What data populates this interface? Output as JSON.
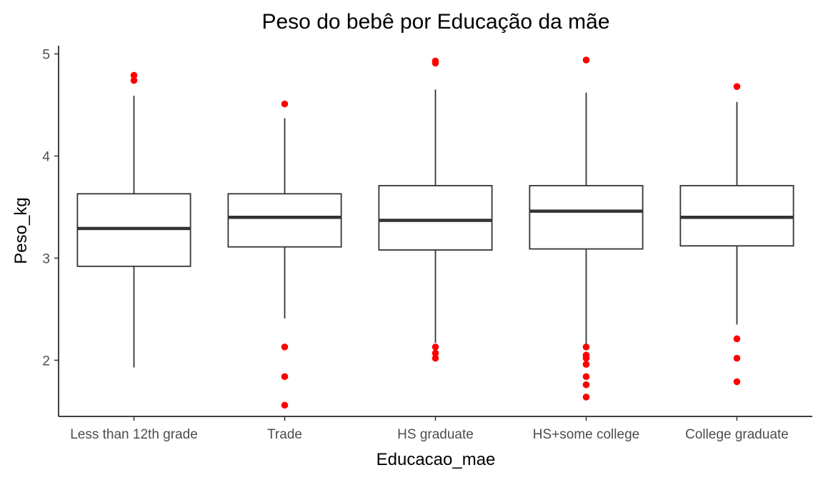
{
  "chart_data": {
    "type": "boxplot",
    "title": "Peso do bebê por Educação da mãe",
    "xlabel": "Educacao_mae",
    "ylabel": "Peso_kg",
    "ylim": [
      1.45,
      5.08
    ],
    "yticks": [
      "2",
      "3",
      "4",
      "5"
    ],
    "grid": false,
    "outlier_color": "#ff0000",
    "box_color": "#333333",
    "categories": [
      "Less than 12th grade",
      "Trade",
      "HS graduate",
      "HS+some college",
      "College graduate"
    ],
    "boxes": [
      {
        "category": "Less than 12th grade",
        "q1": 2.92,
        "median": 3.29,
        "q3": 3.63,
        "lower_whisker": 1.93,
        "upper_whisker": 4.59,
        "outliers": [
          4.79,
          4.74
        ]
      },
      {
        "category": "Trade",
        "q1": 3.11,
        "median": 3.4,
        "q3": 3.63,
        "lower_whisker": 2.41,
        "upper_whisker": 4.37,
        "outliers": [
          4.51,
          2.13,
          1.84,
          1.56
        ]
      },
      {
        "category": "HS graduate",
        "q1": 3.08,
        "median": 3.37,
        "q3": 3.71,
        "lower_whisker": 2.17,
        "upper_whisker": 4.65,
        "outliers": [
          4.93,
          4.91,
          2.13,
          2.07,
          2.02
        ]
      },
      {
        "category": "HS+some college",
        "q1": 3.09,
        "median": 3.46,
        "q3": 3.71,
        "lower_whisker": 2.16,
        "upper_whisker": 4.62,
        "outliers": [
          4.94,
          2.13,
          2.05,
          2.02,
          1.96,
          1.84,
          1.76,
          1.64
        ]
      },
      {
        "category": "College graduate",
        "q1": 3.12,
        "median": 3.4,
        "q3": 3.71,
        "lower_whisker": 2.35,
        "upper_whisker": 4.53,
        "outliers": [
          4.68,
          2.21,
          2.02,
          1.79
        ]
      }
    ]
  }
}
